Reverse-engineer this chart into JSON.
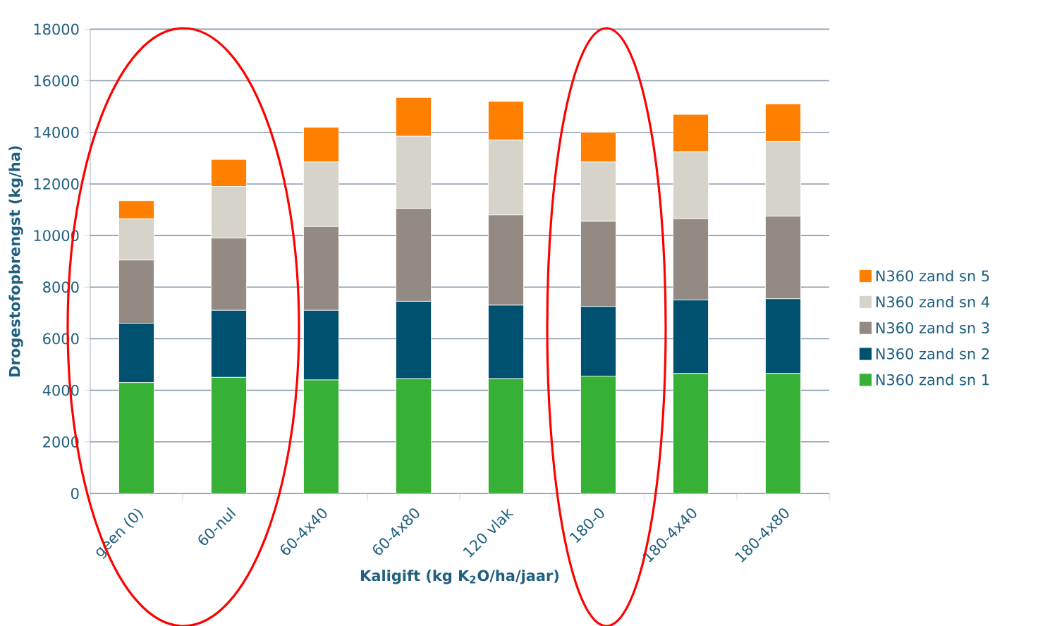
{
  "chart_data": {
    "type": "bar",
    "stacked": true,
    "xlabel": "Kaligift (kg K$_{2}$O/ha/jaar)",
    "ylabel": "Drogestofopbrengst (kg/ha)",
    "categories": [
      "geen (0)",
      "60-nul",
      "60-4x40",
      "60-4x80",
      "120 vlak",
      "180-0",
      "180-4x40",
      "180-4x80"
    ],
    "series": [
      {
        "name": "N360 zand sn 1",
        "color": "#36b136",
        "values": [
          4300,
          4500,
          4400,
          4450,
          4450,
          4550,
          4650,
          4650
        ]
      },
      {
        "name": "N360 zand sn 2",
        "color": "#00506f",
        "values": [
          2300,
          2600,
          2700,
          3000,
          2850,
          2700,
          2850,
          2900
        ]
      },
      {
        "name": "N360 zand sn 3",
        "color": "#948a84",
        "values": [
          2450,
          2800,
          3250,
          3600,
          3500,
          3300,
          3150,
          3200
        ]
      },
      {
        "name": "N360 zand sn 4",
        "color": "#d6d3cb",
        "values": [
          1600,
          2000,
          2500,
          2800,
          2900,
          2300,
          2600,
          2900
        ]
      },
      {
        "name": "N360 zand sn 5",
        "color": "#ff7f00",
        "values": [
          700,
          1050,
          1350,
          1500,
          1500,
          1150,
          1450,
          1450
        ]
      }
    ],
    "ylim": [
      0,
      18000
    ],
    "yticks": [
      0,
      2000,
      4000,
      6000,
      8000,
      10000,
      12000,
      14000,
      16000,
      18000
    ],
    "grid": "y",
    "legend": "right"
  }
}
